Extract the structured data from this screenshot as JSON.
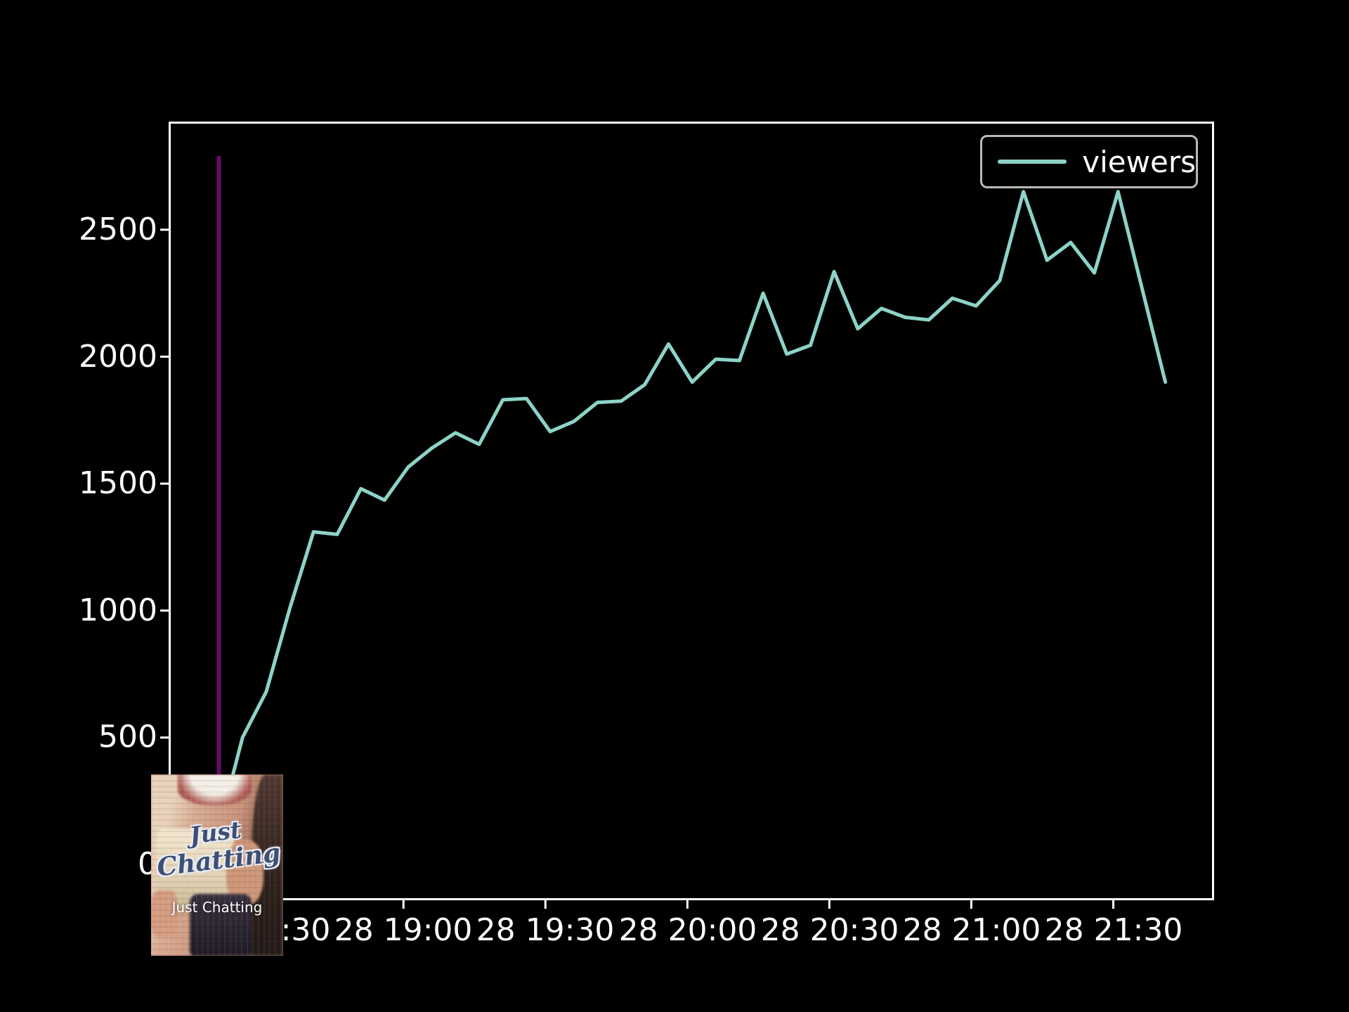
{
  "page": {
    "background": "#000000"
  },
  "chart_data": {
    "type": "line",
    "title": "",
    "background": "#000000",
    "grid": false,
    "axes": {
      "frame_color": "#ffffff",
      "tick_color": "#ffffff",
      "label_color": "#ffffff",
      "x_ticks": [
        {
          "label": "28 18:30",
          "time": "18:30"
        },
        {
          "label": "28 19:00",
          "time": "19:00"
        },
        {
          "label": "28 19:30",
          "time": "19:30"
        },
        {
          "label": "28 20:00",
          "time": "20:00"
        },
        {
          "label": "28 20:30",
          "time": "20:30"
        },
        {
          "label": "28 21:00",
          "time": "21:00"
        },
        {
          "label": "28 21:30",
          "time": "21:30"
        }
      ],
      "y_ticks": [
        {
          "label": "0",
          "value": 0
        },
        {
          "label": "500",
          "value": 500
        },
        {
          "label": "1000",
          "value": 1000
        },
        {
          "label": "1500",
          "value": 1500
        },
        {
          "label": "2000",
          "value": 2000
        },
        {
          "label": "2500",
          "value": 2500
        }
      ],
      "xlim_minutes_after_1800": [
        10.38,
        231.3
      ],
      "ylim": [
        -141,
        2926
      ]
    },
    "legend": {
      "label": "viewers",
      "line_color": "#8dd3c7",
      "border_color": "#b9b9b9",
      "text_color": "#ffffff",
      "position": "upper right"
    },
    "series": [
      {
        "name": "viewers",
        "color": "#8dd3c7",
        "x_times": [
          "18:21",
          "18:26",
          "18:31",
          "18:36",
          "18:41",
          "18:46",
          "18:51",
          "18:56",
          "19:01",
          "19:06",
          "19:11",
          "19:16",
          "19:21",
          "19:26",
          "19:31",
          "19:36",
          "19:41",
          "19:46",
          "19:51",
          "19:56",
          "20:01",
          "20:06",
          "20:11",
          "20:16",
          "20:21",
          "20:26",
          "20:31",
          "20:36",
          "20:41",
          "20:46",
          "20:51",
          "20:56",
          "21:01",
          "21:06",
          "21:11",
          "21:16",
          "21:21",
          "21:26",
          "21:31",
          "21:36",
          "21:41"
        ],
        "values": [
          140,
          500,
          680,
          1010,
          1310,
          1300,
          1480,
          1435,
          1565,
          1640,
          1700,
          1655,
          1830,
          1835,
          1705,
          1745,
          1820,
          1825,
          1890,
          2050,
          1900,
          1990,
          1985,
          2250,
          2010,
          2045,
          2335,
          2110,
          2190,
          2155,
          2145,
          2230,
          2200,
          2300,
          2650,
          2380,
          2450,
          2330,
          2650,
          2275,
          1900
        ]
      }
    ],
    "vline": {
      "color": "#69096d",
      "x_time": "18:21",
      "top_value": 2790
    }
  },
  "overlay": {
    "logo_line1": "Just",
    "logo_line2": "Chatting",
    "caption": "Just Chatting"
  }
}
